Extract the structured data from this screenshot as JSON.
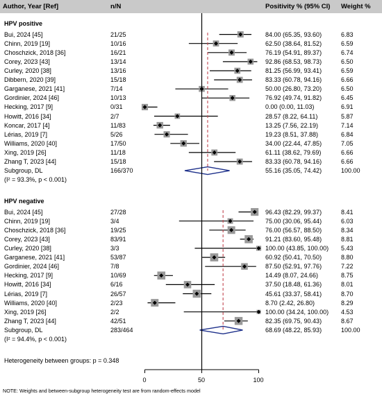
{
  "headers": {
    "author": "Author, Year [Ref]",
    "nn": "n/N",
    "positivity": "Positivity % (95% CI)",
    "weight": "Weight %"
  },
  "groups": [
    {
      "title": "HPV positive",
      "studies": [
        {
          "label": "Bui, 2024 [45]",
          "nn": "21/25",
          "est": 84.0,
          "lo": 65.35,
          "hi": 93.6,
          "ci_text": "84.00 (65.35, 93.60)",
          "weight": "6.83"
        },
        {
          "label": "Chinn, 2019 [19]",
          "nn": "10/16",
          "est": 62.5,
          "lo": 38.64,
          "hi": 81.52,
          "ci_text": "62.50 (38.64, 81.52)",
          "weight": "6.59"
        },
        {
          "label": "Choschzick, 2018 [36]",
          "nn": "16/21",
          "est": 76.19,
          "lo": 54.91,
          "hi": 89.37,
          "ci_text": "76.19 (54.91, 89.37)",
          "weight": "6.74"
        },
        {
          "label": "Corey, 2023 [43]",
          "nn": "13/14",
          "est": 92.86,
          "lo": 68.53,
          "hi": 98.73,
          "ci_text": "92.86 (68.53, 98.73)",
          "weight": "6.50"
        },
        {
          "label": "Curley, 2020 [38]",
          "nn": "13/16",
          "est": 81.25,
          "lo": 56.99,
          "hi": 93.41,
          "ci_text": "81.25 (56.99, 93.41)",
          "weight": "6.59"
        },
        {
          "label": "Dibbern, 2020 [39]",
          "nn": "15/18",
          "est": 83.33,
          "lo": 60.78,
          "hi": 94.16,
          "ci_text": "83.33 (60.78, 94.16)",
          "weight": "6.66"
        },
        {
          "label": "Garganese, 2021 [41]",
          "nn": "7/14",
          "est": 50.0,
          "lo": 26.8,
          "hi": 73.2,
          "ci_text": "50.00 (26.80, 73.20)",
          "weight": "6.50"
        },
        {
          "label": "Gordinier, 2024 [46]",
          "nn": "10/13",
          "est": 76.92,
          "lo": 49.74,
          "hi": 91.82,
          "ci_text": "76.92 (49.74, 91.82)",
          "weight": "6.45"
        },
        {
          "label": "Hecking, 2017 [9]",
          "nn": "0/31",
          "est": 0.0,
          "lo": 0.0,
          "hi": 11.03,
          "ci_text": "0.00 (0.00, 11.03)",
          "weight": "6.91"
        },
        {
          "label": "Howitt, 2016 [34]",
          "nn": "2/7",
          "est": 28.57,
          "lo": 8.22,
          "hi": 64.11,
          "ci_text": "28.57 (8.22, 64.11)",
          "weight": "5.87"
        },
        {
          "label": "Koncar, 2017 [4]",
          "nn": "11/83",
          "est": 13.25,
          "lo": 7.56,
          "hi": 22.19,
          "ci_text": "13.25 (7.56, 22.19)",
          "weight": "7.14"
        },
        {
          "label": "Lérias, 2019 [7]",
          "nn": "5/26",
          "est": 19.23,
          "lo": 8.51,
          "hi": 37.88,
          "ci_text": "19.23 (8.51, 37.88)",
          "weight": "6.84"
        },
        {
          "label": "Williams, 2020 [40]",
          "nn": "17/50",
          "est": 34.0,
          "lo": 22.44,
          "hi": 47.85,
          "ci_text": "34.00 (22.44, 47.85)",
          "weight": "7.05"
        },
        {
          "label": "Xing, 2019 [26]",
          "nn": "11/18",
          "est": 61.11,
          "lo": 38.62,
          "hi": 79.69,
          "ci_text": "61.11 (38.62, 79.69)",
          "weight": "6.66"
        },
        {
          "label": "Zhang T, 2023 [44]",
          "nn": "15/18",
          "est": 83.33,
          "lo": 60.78,
          "hi": 94.16,
          "ci_text": "83.33 (60.78, 94.16)",
          "weight": "6.66"
        }
      ],
      "subgroup": {
        "label": "Subgroup, DL",
        "nn": "166/370",
        "est": 55.16,
        "lo": 35.05,
        "hi": 74.42,
        "ci_text": "55.16 (35.05, 74.42)",
        "weight": "100.00"
      },
      "heterogeneity": "(I² = 93.3%, p < 0.001)"
    },
    {
      "title": "HPV negative",
      "studies": [
        {
          "label": "Bui, 2024 [45]",
          "nn": "27/28",
          "est": 96.43,
          "lo": 82.29,
          "hi": 99.37,
          "ci_text": "96.43 (82.29, 99.37)",
          "weight": "8.41"
        },
        {
          "label": "Chinn, 2019 [19]",
          "nn": "3/4",
          "est": 75.0,
          "lo": 30.06,
          "hi": 95.44,
          "ci_text": "75.00 (30.06, 95.44)",
          "weight": "6.03"
        },
        {
          "label": "Choschzick, 2018 [36]",
          "nn": "19/25",
          "est": 76.0,
          "lo": 56.57,
          "hi": 88.5,
          "ci_text": "76.00 (56.57, 88.50)",
          "weight": "8.34"
        },
        {
          "label": "Corey, 2023 [43]",
          "nn": "83/91",
          "est": 91.21,
          "lo": 83.6,
          "hi": 95.48,
          "ci_text": "91.21 (83.60, 95.48)",
          "weight": "8.81"
        },
        {
          "label": "Curley, 2020 [38]",
          "nn": "3/3",
          "est": 100.0,
          "lo": 43.85,
          "hi": 100.0,
          "ci_text": "100.00 (43.85, 100.00)",
          "weight": "5.43"
        },
        {
          "label": "Garganese, 2021 [41]",
          "nn": "53/87",
          "est": 60.92,
          "lo": 50.41,
          "hi": 70.5,
          "ci_text": "60.92 (50.41, 70.50)",
          "weight": "8.80"
        },
        {
          "label": "Gordinier, 2024 [46]",
          "nn": "7/8",
          "est": 87.5,
          "lo": 52.91,
          "hi": 97.76,
          "ci_text": "87.50 (52.91, 97.76)",
          "weight": "7.22"
        },
        {
          "label": "Hecking, 2017 [9]",
          "nn": "10/69",
          "est": 14.49,
          "lo": 8.07,
          "hi": 24.66,
          "ci_text": "14.49 (8.07, 24.66)",
          "weight": "8.75"
        },
        {
          "label": "Howitt, 2016 [34]",
          "nn": "6/16",
          "est": 37.5,
          "lo": 18.48,
          "hi": 61.36,
          "ci_text": "37.50 (18.48, 61.36)",
          "weight": "8.01"
        },
        {
          "label": "Lérias, 2019 [7]",
          "nn": "26/57",
          "est": 45.61,
          "lo": 33.37,
          "hi": 58.41,
          "ci_text": "45.61 (33.37, 58.41)",
          "weight": "8.70"
        },
        {
          "label": "Williams, 2020 [40]",
          "nn": "2/23",
          "est": 8.7,
          "lo": 2.42,
          "hi": 26.8,
          "ci_text": "8.70 (2.42, 26.80)",
          "weight": "8.29"
        },
        {
          "label": "Xing, 2019 [26]",
          "nn": "2/2",
          "est": 100.0,
          "lo": 34.24,
          "hi": 100.0,
          "ci_text": "100.00 (34.24, 100.00)",
          "weight": "4.53"
        },
        {
          "label": "Zhang T, 2023 [44]",
          "nn": "42/51",
          "est": 82.35,
          "lo": 69.75,
          "hi": 90.43,
          "ci_text": "82.35 (69.75, 90.43)",
          "weight": "8.67"
        }
      ],
      "subgroup": {
        "label": "Subgroup, DL",
        "nn": "283/464",
        "est": 68.69,
        "lo": 48.22,
        "hi": 85.93,
        "ci_text": "68.69 (48.22, 85.93)",
        "weight": "100.00"
      },
      "heterogeneity": "(I² = 94.4%, p < 0.001)"
    }
  ],
  "between_groups": "Heterogeneity between groups: p = 0.348",
  "note": "NOTE: Weights and between-subgroup heterogeneity test are from random-effects model",
  "chart_data": {
    "type": "forest",
    "xlim": [
      0,
      100
    ],
    "xticks": [
      0,
      50,
      100
    ],
    "colors": {
      "header_bg": "#c9c9c9",
      "diamond": "#1c2f8a",
      "subgroup_line": "#c0424c",
      "marker": "#999999"
    }
  }
}
